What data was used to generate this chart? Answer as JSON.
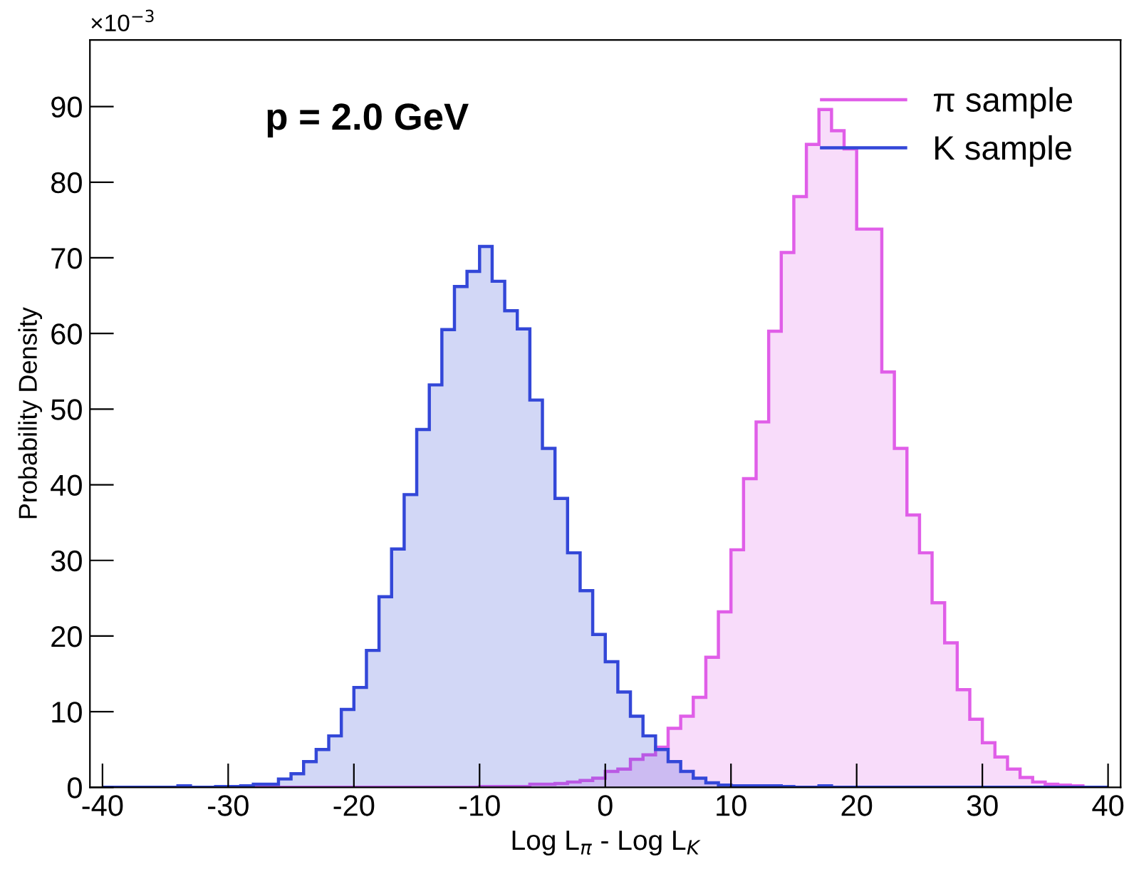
{
  "chart_data": {
    "type": "histogram",
    "annotations": [
      "p = 2.0 GeV",
      "×10$^{−3}$"
    ],
    "xlabel": "Log L$_{π}$ - Log L$_{K}$",
    "ylabel": "Probability Density",
    "bins": [
      -40,
      -39,
      -38,
      -37,
      -36,
      -35,
      -34,
      -33,
      -32,
      -31,
      -30,
      -29,
      -28,
      -27,
      -26,
      -25,
      -24,
      -23,
      -22,
      -21,
      -20,
      -19,
      -18,
      -17,
      -16,
      -15,
      -14,
      -13,
      -12,
      -11,
      -10,
      -9,
      -8,
      -7,
      -6,
      -5,
      -4,
      -3,
      -2,
      -1,
      0,
      1,
      2,
      3,
      4,
      5,
      6,
      7,
      8,
      9,
      10,
      11,
      12,
      13,
      14,
      15,
      16,
      17,
      18,
      19,
      20,
      21,
      22,
      23,
      24,
      25,
      26,
      27,
      28,
      29,
      30,
      31,
      32,
      33,
      34,
      35,
      36,
      37,
      38,
      39,
      40
    ],
    "series": [
      {
        "name": "π sample",
        "color": "#e05ee8",
        "values": [
          0,
          0,
          0,
          0,
          0,
          0,
          0,
          0,
          0,
          0,
          0,
          0,
          0,
          0,
          0,
          0,
          0,
          0,
          0,
          0,
          0,
          0,
          0,
          0,
          0,
          0,
          0,
          0,
          0,
          0,
          0.1,
          0.1,
          0.1,
          0.1,
          0.4,
          0.4,
          0.5,
          0.7,
          0.9,
          1.2,
          2.1,
          2.4,
          3.7,
          4.3,
          5.3,
          7.8,
          9.4,
          11.9,
          17.2,
          23.2,
          31.4,
          40.8,
          48.3,
          60.3,
          70.7,
          78.1,
          85.0,
          89.6,
          86.8,
          84.4,
          73.8,
          73.8,
          54.9,
          44.8,
          36.0,
          31.0,
          24.4,
          19.1,
          12.9,
          9.0,
          5.9,
          4.0,
          2.4,
          1.3,
          0.7,
          0.4,
          0.3,
          0.2,
          0,
          0
        ]
      },
      {
        "name": "K sample",
        "color": "#3347d8",
        "values": [
          0,
          0,
          0,
          0,
          0,
          0,
          0.2,
          0,
          0,
          0.1,
          0.1,
          0.2,
          0.4,
          0.4,
          1.1,
          1.8,
          3.4,
          5.0,
          6.8,
          10.3,
          13.2,
          18.1,
          25.2,
          31.5,
          38.7,
          47.3,
          53.2,
          60.5,
          66.2,
          68.2,
          71.5,
          66.9,
          63.0,
          60.6,
          51.2,
          44.8,
          38.2,
          31.0,
          26.0,
          20.2,
          16.6,
          12.6,
          9.4,
          6.8,
          5.0,
          3.4,
          2.1,
          1.2,
          0.6,
          0.3,
          0.2,
          0.2,
          0.2,
          0.2,
          0.1,
          0,
          0,
          0.2,
          0,
          0,
          0,
          0,
          0,
          0,
          0,
          0,
          0,
          0,
          0,
          0,
          0,
          0,
          0,
          0,
          0,
          0,
          0,
          0,
          0,
          0
        ]
      }
    ],
    "xlim": [
      -41,
      41
    ],
    "ylim": [
      0,
      98.8
    ],
    "xticks": [
      -40,
      -30,
      -20,
      -10,
      0,
      10,
      20,
      30,
      40
    ],
    "yticks": [
      0,
      10,
      20,
      30,
      40,
      50,
      60,
      70,
      80,
      90
    ],
    "grid": false,
    "legend": "top right"
  }
}
